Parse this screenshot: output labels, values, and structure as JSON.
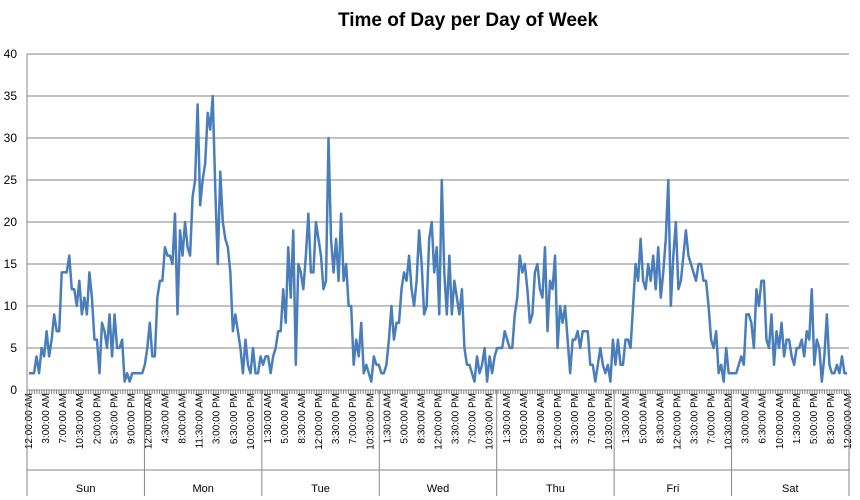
{
  "chart_data": {
    "type": "line",
    "title": "Time of Day per Day of Week",
    "xlabel": "",
    "ylabel": "",
    "ylim": [
      0,
      40
    ],
    "yticks": [
      0,
      5,
      10,
      15,
      20,
      25,
      30,
      35,
      40
    ],
    "grid": true,
    "legend": "none",
    "series_color": "#4a7ebb",
    "groups": [
      "Sun",
      "Mon",
      "Tue",
      "Wed",
      "Thu",
      "Fri",
      "Sat"
    ],
    "tick_labels": [
      "12:00:00 AM",
      "3:00:00 AM",
      "7:00:00 AM",
      "10:30:00 AM",
      "2:00:00 PM",
      "5:30:00 PM",
      "9:00:00 PM",
      "12:00:00 AM",
      "4:30:00 AM",
      "8:00:00 AM",
      "11:30:00 AM",
      "3:00:00 PM",
      "6:30:00 PM",
      "10:00:00 PM",
      "1:30:00 AM",
      "5:00:00 AM",
      "8:30:00 AM",
      "12:00:00 PM",
      "3:30:00 PM",
      "7:00:00 PM",
      "10:30:00 PM",
      "1:30:00 AM",
      "5:00:00 AM",
      "8:30:00 AM",
      "12:00:00 PM",
      "3:30:00 PM",
      "7:00:00 PM",
      "10:30:00 PM",
      "1:30:00 AM",
      "5:00:00 AM",
      "8:30:00 AM",
      "12:00:00 PM",
      "3:30:00 PM",
      "7:00:00 PM",
      "10:30:00 PM",
      "1:30:00 AM",
      "5:00:00 AM",
      "8:30:00 AM",
      "12:00:00 PM",
      "3:30:00 PM",
      "7:00:00 PM",
      "10:30:00 PM",
      "3:00:00 AM",
      "6:30:00 AM",
      "10:00:00 AM",
      "1:30:00 PM",
      "5:00:00 PM",
      "8:30:00 PM",
      "12:00:00 AM"
    ],
    "series": [
      {
        "values": [
          2,
          2,
          2,
          4,
          2,
          5,
          4,
          7,
          4,
          6,
          9,
          7,
          7,
          14,
          14,
          14,
          16,
          12,
          12,
          10,
          13,
          9,
          11,
          9,
          14,
          11,
          6,
          6,
          2,
          8,
          7,
          5,
          9,
          4,
          9,
          5,
          5,
          6,
          1,
          2,
          1,
          2,
          2,
          2,
          2,
          2,
          3,
          5,
          8,
          4,
          4,
          11,
          13,
          13,
          17,
          16,
          16,
          15,
          21,
          9,
          19,
          16,
          20,
          17,
          16,
          23,
          25,
          34,
          22,
          25,
          27,
          33,
          31,
          35,
          24,
          15,
          26,
          20,
          18,
          17,
          14,
          7,
          9,
          7,
          5,
          2,
          6,
          3,
          2,
          5,
          2,
          2,
          4,
          3,
          4,
          4,
          2,
          4,
          5,
          7,
          7,
          12,
          8,
          17,
          11,
          19,
          3,
          15,
          14,
          12,
          16,
          21,
          14,
          14,
          20,
          18,
          16,
          12,
          13,
          30,
          18,
          14,
          18,
          13,
          21,
          13,
          15,
          10,
          10,
          3,
          6,
          4,
          8,
          2,
          3,
          2,
          1,
          4,
          3,
          3,
          2,
          2,
          3,
          6,
          10,
          6,
          8,
          8,
          12,
          14,
          13,
          16,
          12,
          10,
          13,
          19,
          15,
          9,
          10,
          18,
          20,
          14,
          17,
          9,
          25,
          14,
          9,
          16,
          9,
          13,
          11,
          9,
          12,
          5,
          3,
          3,
          2,
          1,
          4,
          2,
          3,
          5,
          1,
          4,
          2,
          4,
          5,
          5,
          5,
          7,
          6,
          5,
          5,
          9,
          11,
          16,
          14,
          15,
          12,
          8,
          9,
          14,
          15,
          12,
          11,
          17,
          7,
          13,
          12,
          16,
          5,
          10,
          8,
          10,
          6,
          2,
          6,
          6,
          7,
          5,
          7,
          7,
          7,
          3,
          3,
          1,
          3,
          5,
          3,
          2,
          3,
          1,
          6,
          3,
          6,
          3,
          3,
          6,
          6,
          5,
          10,
          15,
          13,
          18,
          13,
          12,
          15,
          13,
          16,
          12,
          17,
          11,
          14,
          18,
          25,
          10,
          16,
          20,
          12,
          13,
          16,
          19,
          16,
          15,
          14,
          13,
          15,
          15,
          13,
          13,
          10,
          6,
          5,
          7,
          2,
          3,
          1,
          5,
          2,
          2,
          2,
          2,
          3,
          4,
          3,
          9,
          9,
          8,
          5,
          12,
          10,
          13,
          13,
          6,
          5,
          9,
          3,
          7,
          5,
          8,
          4,
          6,
          6,
          4,
          3,
          5,
          5,
          6,
          4,
          7,
          6,
          12,
          3,
          6,
          5,
          1,
          4,
          9,
          3,
          2,
          2,
          3,
          2,
          4,
          2,
          2
        ]
      }
    ]
  }
}
